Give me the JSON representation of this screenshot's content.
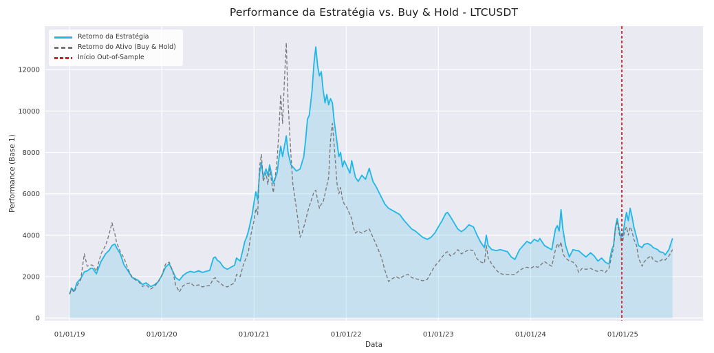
{
  "page": {
    "title": "Performance da Estratégia vs. Buy & Hold - LTCUSDT"
  },
  "chart_data": {
    "type": "line",
    "title": "Performance da Estratégia vs. Buy & Hold - LTCUSDT",
    "xlabel": "Data",
    "ylabel": "Performance (Base 1)",
    "background": "#e9eaf2",
    "grid": true,
    "grid_color": "#ffffff",
    "legend_position": "upper-left",
    "x_tick_labels": [
      "01/01/19",
      "01/01/20",
      "01/01/21",
      "01/01/22",
      "01/01/23",
      "01/01/24",
      "01/01/25"
    ],
    "x_tick_values": [
      2019,
      2020,
      2021,
      2022,
      2023,
      2024,
      2025
    ],
    "y_ticks": [
      0,
      2000,
      4000,
      6000,
      8000,
      10000,
      12000
    ],
    "xlim": [
      2018.73,
      2025.87
    ],
    "ylim": [
      -130,
      14100
    ],
    "x": [
      2019.0,
      2019.02,
      2019.05,
      2019.08,
      2019.12,
      2019.16,
      2019.19,
      2019.23,
      2019.25,
      2019.29,
      2019.34,
      2019.39,
      2019.43,
      2019.46,
      2019.49,
      2019.51,
      2019.55,
      2019.59,
      2019.63,
      2019.68,
      2019.71,
      2019.75,
      2019.79,
      2019.83,
      2019.88,
      2019.92,
      2019.96,
      2020.0,
      2020.04,
      2020.08,
      2020.12,
      2020.15,
      2020.19,
      2020.23,
      2020.27,
      2020.31,
      2020.35,
      2020.4,
      2020.44,
      2020.48,
      2020.52,
      2020.56,
      2020.58,
      2020.6,
      2020.63,
      2020.67,
      2020.71,
      2020.75,
      2020.79,
      2020.81,
      2020.85,
      2020.88,
      2020.9,
      2020.92,
      2020.94,
      2020.96,
      2020.98,
      2021.0,
      2021.02,
      2021.04,
      2021.06,
      2021.08,
      2021.1,
      2021.13,
      2021.15,
      2021.17,
      2021.21,
      2021.25,
      2021.27,
      2021.29,
      2021.31,
      2021.33,
      2021.35,
      2021.37,
      2021.4,
      2021.42,
      2021.46,
      2021.5,
      2021.52,
      2021.54,
      2021.56,
      2021.58,
      2021.6,
      2021.63,
      2021.65,
      2021.67,
      2021.69,
      2021.71,
      2021.73,
      2021.75,
      2021.77,
      2021.79,
      2021.81,
      2021.83,
      2021.85,
      2021.87,
      2021.9,
      2021.92,
      2021.94,
      2021.96,
      2021.98,
      2022.0,
      2022.04,
      2022.06,
      2022.08,
      2022.1,
      2022.13,
      2022.17,
      2022.21,
      2022.25,
      2022.29,
      2022.33,
      2022.38,
      2022.42,
      2022.46,
      2022.5,
      2022.54,
      2022.58,
      2022.63,
      2022.67,
      2022.71,
      2022.75,
      2022.79,
      2022.83,
      2022.88,
      2022.92,
      2022.96,
      2023.0,
      2023.04,
      2023.08,
      2023.1,
      2023.13,
      2023.17,
      2023.21,
      2023.25,
      2023.29,
      2023.33,
      2023.38,
      2023.42,
      2023.46,
      2023.5,
      2023.52,
      2023.54,
      2023.58,
      2023.63,
      2023.67,
      2023.71,
      2023.75,
      2023.79,
      2023.83,
      2023.88,
      2023.92,
      2023.96,
      2024.0,
      2024.04,
      2024.08,
      2024.1,
      2024.15,
      2024.19,
      2024.23,
      2024.27,
      2024.29,
      2024.31,
      2024.33,
      2024.35,
      2024.38,
      2024.42,
      2024.46,
      2024.5,
      2024.52,
      2024.56,
      2024.6,
      2024.65,
      2024.69,
      2024.73,
      2024.77,
      2024.81,
      2024.85,
      2024.88,
      2024.9,
      2024.92,
      2024.94,
      2024.96,
      2024.98,
      2025.0,
      2025.02,
      2025.04,
      2025.06,
      2025.08,
      2025.1,
      2025.12,
      2025.15,
      2025.17,
      2025.21,
      2025.23,
      2025.27,
      2025.31,
      2025.33,
      2025.38,
      2025.4,
      2025.44,
      2025.46,
      2025.5,
      2025.54
    ],
    "series": [
      {
        "name": "Retorno da Estratégia",
        "color": "#1fb6e8",
        "line_style": "solid",
        "line_width": 1.8,
        "fill_to_zero": true,
        "fill_color": "rgba(135,206,235,0.35)",
        "values": [
          1150,
          1450,
          1300,
          1700,
          1900,
          2230,
          2270,
          2400,
          2400,
          2130,
          2730,
          3100,
          3270,
          3500,
          3570,
          3400,
          3100,
          2560,
          2300,
          1950,
          1900,
          1800,
          1620,
          1700,
          1520,
          1600,
          1750,
          2050,
          2450,
          2620,
          2250,
          1950,
          1820,
          2050,
          2180,
          2250,
          2200,
          2280,
          2200,
          2250,
          2300,
          2900,
          2950,
          2800,
          2700,
          2450,
          2350,
          2450,
          2550,
          2900,
          2750,
          3300,
          3700,
          3900,
          4200,
          4600,
          5000,
          5600,
          6100,
          5700,
          7000,
          7500,
          6800,
          7200,
          6900,
          7400,
          6500,
          7000,
          7700,
          8300,
          7800,
          8300,
          8800,
          8000,
          7400,
          7300,
          7100,
          7200,
          7500,
          7800,
          8600,
          9600,
          9800,
          11000,
          12300,
          13100,
          12200,
          11700,
          11900,
          11000,
          10400,
          10800,
          10300,
          10600,
          10400,
          9500,
          8500,
          7800,
          8000,
          7300,
          7600,
          7400,
          7000,
          7600,
          7200,
          6800,
          6600,
          6900,
          6700,
          7230,
          6600,
          6300,
          5850,
          5500,
          5300,
          5200,
          5100,
          5000,
          4700,
          4500,
          4300,
          4200,
          4050,
          3900,
          3800,
          3900,
          4100,
          4400,
          4700,
          5050,
          5100,
          4900,
          4600,
          4300,
          4170,
          4300,
          4500,
          4400,
          4000,
          3650,
          3400,
          4000,
          3500,
          3300,
          3250,
          3300,
          3250,
          3200,
          2950,
          2830,
          3300,
          3500,
          3700,
          3600,
          3800,
          3700,
          3840,
          3500,
          3400,
          3300,
          4300,
          4460,
          4200,
          5230,
          4300,
          3500,
          2950,
          3300,
          3250,
          3250,
          3100,
          2950,
          3150,
          3000,
          2750,
          2900,
          2700,
          2600,
          3300,
          3500,
          4400,
          4800,
          4300,
          3900,
          3960,
          4600,
          5100,
          4700,
          5300,
          4900,
          4400,
          3900,
          3500,
          3400,
          3550,
          3600,
          3500,
          3400,
          3300,
          3200,
          3150,
          3050,
          3300,
          3850
        ]
      },
      {
        "name": "Retorno do Ativo (Buy & Hold)",
        "color": "#757575",
        "line_style": "dashed",
        "line_width": 1.3,
        "fill_to_zero": false,
        "values": [
          1150,
          1400,
          1250,
          1550,
          1850,
          3100,
          2500,
          2560,
          2550,
          2250,
          3100,
          3500,
          4070,
          4600,
          4070,
          3650,
          3200,
          2900,
          2400,
          1950,
          1850,
          1750,
          1520,
          1600,
          1400,
          1520,
          1750,
          2050,
          2600,
          2700,
          2250,
          1600,
          1260,
          1560,
          1650,
          1700,
          1550,
          1600,
          1500,
          1550,
          1560,
          1900,
          1950,
          1800,
          1700,
          1550,
          1500,
          1600,
          1700,
          2100,
          2000,
          2500,
          2750,
          2950,
          3200,
          3900,
          4300,
          4700,
          5300,
          5000,
          7300,
          7900,
          6600,
          7000,
          6450,
          7200,
          6050,
          7600,
          9000,
          10800,
          9400,
          11500,
          13300,
          10400,
          7900,
          6500,
          5300,
          3900,
          4100,
          4400,
          4700,
          5100,
          5400,
          5800,
          6100,
          6170,
          5700,
          5300,
          5500,
          5600,
          6000,
          6400,
          6800,
          8600,
          9400,
          8300,
          6500,
          6000,
          6300,
          5700,
          5500,
          5400,
          5000,
          4800,
          4350,
          4100,
          4200,
          4100,
          4200,
          4300,
          3900,
          3500,
          2960,
          2300,
          1760,
          1900,
          2000,
          1900,
          2050,
          2100,
          1950,
          1900,
          1850,
          1800,
          1860,
          2200,
          2500,
          2700,
          2950,
          3150,
          3200,
          3000,
          3100,
          3300,
          3100,
          3200,
          3300,
          3250,
          2850,
          2700,
          2650,
          3500,
          2900,
          2600,
          2300,
          2150,
          2100,
          2100,
          2080,
          2100,
          2300,
          2400,
          2450,
          2400,
          2500,
          2450,
          2520,
          2730,
          2600,
          2500,
          3300,
          3600,
          3400,
          3670,
          3100,
          2900,
          2750,
          2700,
          2500,
          2200,
          2400,
          2350,
          2400,
          2300,
          2250,
          2300,
          2200,
          2400,
          3000,
          3400,
          4300,
          4700,
          4100,
          3700,
          3730,
          4200,
          4400,
          4000,
          4400,
          4200,
          3800,
          3500,
          2900,
          2500,
          2700,
          2900,
          3000,
          2800,
          2700,
          2750,
          2850,
          2800,
          3000,
          3300
        ]
      }
    ],
    "vline": {
      "label": "Início Out-of-Sample",
      "color": "#dc1627",
      "line_style": "dashed",
      "x": 2024.99
    }
  }
}
